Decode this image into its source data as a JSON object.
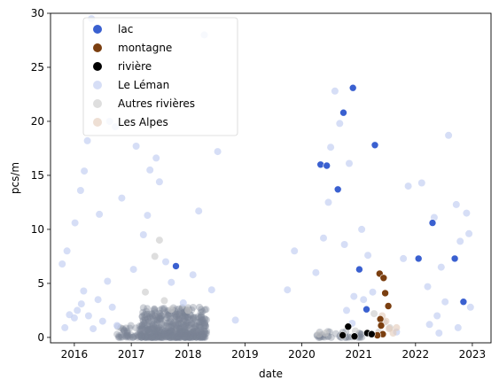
{
  "chart_data": {
    "type": "scatter",
    "xlabel": "date",
    "ylabel": "pcs/m",
    "xlim": [
      "2015-08-01",
      "2023-05-01"
    ],
    "ylim": [
      -0.5,
      30
    ],
    "x_ticks": [
      "2016",
      "2017",
      "2018",
      "2019",
      "2020",
      "2021",
      "2022",
      "2023"
    ],
    "y_ticks": [
      0,
      5,
      10,
      15,
      20,
      25,
      30
    ],
    "grid": false,
    "legend_position": "top-left",
    "series": [
      {
        "name": "lac",
        "color": "#3a60d0",
        "alpha": 1,
        "points": [
          [
            "2017-10-15",
            6.6
          ],
          [
            "2020-05-01",
            16.0
          ],
          [
            "2020-06-10",
            15.9
          ],
          [
            "2020-08-20",
            13.7
          ],
          [
            "2020-09-25",
            20.8
          ],
          [
            "2020-11-25",
            23.1
          ],
          [
            "2021-01-05",
            6.3
          ],
          [
            "2021-02-20",
            2.6
          ],
          [
            "2021-04-15",
            17.8
          ],
          [
            "2022-01-20",
            7.3
          ],
          [
            "2022-04-20",
            10.6
          ],
          [
            "2022-09-10",
            7.3
          ],
          [
            "2022-11-05",
            3.3
          ]
        ]
      },
      {
        "name": "montagne",
        "color": "#7b3f10",
        "alpha": 1,
        "points": [
          [
            "2021-05-15",
            5.9
          ],
          [
            "2021-06-10",
            5.5
          ],
          [
            "2021-06-20",
            4.1
          ],
          [
            "2021-07-10",
            2.9
          ],
          [
            "2021-05-20",
            1.7
          ],
          [
            "2021-05-25",
            1.1
          ],
          [
            "2021-06-05",
            0.3
          ],
          [
            "2021-05-01",
            0.2
          ]
        ]
      },
      {
        "name": "rivière",
        "color": "#000000",
        "alpha": 1,
        "points": [
          [
            "2020-09-20",
            0.2
          ],
          [
            "2020-10-25",
            1.0
          ],
          [
            "2020-12-05",
            0.1
          ],
          [
            "2021-02-25",
            0.4
          ],
          [
            "2021-03-25",
            0.3
          ]
        ]
      },
      {
        "name": "Le Léman",
        "color": "#c5d0f2",
        "alpha": 0.7,
        "points": [
          [
            "2015-11-01",
            0.9
          ],
          [
            "2015-12-01",
            2.1
          ],
          [
            "2016-01-01",
            1.8
          ],
          [
            "2016-01-20",
            2.5
          ],
          [
            "2016-02-15",
            3.1
          ],
          [
            "2016-03-01",
            4.3
          ],
          [
            "2016-04-01",
            2.0
          ],
          [
            "2016-05-01",
            0.8
          ],
          [
            "2016-06-01",
            3.5
          ],
          [
            "2016-07-01",
            1.5
          ],
          [
            "2016-08-01",
            5.2
          ],
          [
            "2016-09-01",
            2.8
          ],
          [
            "2016-10-01",
            1.1
          ],
          [
            "2015-10-15",
            6.8
          ],
          [
            "2015-11-15",
            8.0
          ],
          [
            "2016-01-05",
            10.6
          ],
          [
            "2016-02-10",
            13.6
          ],
          [
            "2016-03-05",
            15.4
          ],
          [
            "2016-03-25",
            18.2
          ],
          [
            "2016-04-20",
            29.5
          ],
          [
            "2016-06-10",
            11.4
          ],
          [
            "2016-08-15",
            20.0
          ],
          [
            "2016-09-20",
            19.5
          ],
          [
            "2016-11-01",
            12.9
          ],
          [
            "2017-02-01",
            17.7
          ],
          [
            "2017-01-15",
            6.3
          ],
          [
            "2017-03-20",
            9.5
          ],
          [
            "2017-05-01",
            15.5
          ],
          [
            "2017-06-10",
            16.6
          ],
          [
            "2017-07-01",
            14.4
          ],
          [
            "2017-04-15",
            11.3
          ],
          [
            "2017-08-10",
            7.0
          ],
          [
            "2017-09-15",
            5.1
          ],
          [
            "2017-12-01",
            3.2
          ],
          [
            "2018-02-01",
            5.8
          ],
          [
            "2018-03-10",
            11.7
          ],
          [
            "2018-04-15",
            28.0
          ],
          [
            "2018-06-01",
            4.4
          ],
          [
            "2018-07-10",
            17.2
          ],
          [
            "2018-11-01",
            1.6
          ],
          [
            "2019-10-01",
            4.4
          ],
          [
            "2019-11-15",
            8.0
          ],
          [
            "2020-04-01",
            6.0
          ],
          [
            "2020-05-20",
            9.2
          ],
          [
            "2020-06-20",
            12.5
          ],
          [
            "2020-07-05",
            17.6
          ],
          [
            "2020-08-01",
            22.8
          ],
          [
            "2020-09-01",
            19.8
          ],
          [
            "2020-10-01",
            8.6
          ],
          [
            "2020-11-01",
            16.1
          ],
          [
            "2020-12-01",
            3.8
          ],
          [
            "2021-01-20",
            10.0
          ],
          [
            "2021-03-01",
            7.6
          ],
          [
            "2021-04-01",
            4.2
          ],
          [
            "2021-09-01",
            0.5
          ],
          [
            "2021-10-15",
            7.3
          ],
          [
            "2021-11-15",
            14.0
          ],
          [
            "2022-02-10",
            14.3
          ],
          [
            "2022-03-20",
            4.7
          ],
          [
            "2022-05-01",
            11.1
          ],
          [
            "2022-06-15",
            6.5
          ],
          [
            "2022-08-01",
            18.7
          ],
          [
            "2022-09-20",
            12.3
          ],
          [
            "2022-10-15",
            8.9
          ],
          [
            "2022-11-25",
            11.5
          ],
          [
            "2022-12-10",
            9.6
          ],
          [
            "2022-12-20",
            2.8
          ],
          [
            "2022-07-10",
            3.3
          ],
          [
            "2022-05-20",
            2.0
          ],
          [
            "2022-04-01",
            1.2
          ],
          [
            "2022-06-01",
            0.4
          ],
          [
            "2022-10-01",
            0.9
          ],
          [
            "2020-10-15",
            2.5
          ],
          [
            "2020-11-20",
            1.3
          ],
          [
            "2021-02-01",
            3.5
          ]
        ]
      },
      {
        "name": "Autres rivières",
        "color": "#c8c8c8",
        "alpha": 0.6,
        "points": [
          [
            "2017-04-01",
            4.2
          ],
          [
            "2017-06-01",
            7.5
          ],
          [
            "2017-07-01",
            9.0
          ],
          [
            "2017-08-01",
            3.4
          ],
          [
            "2017-09-15",
            2.6
          ],
          [
            "2018-01-01",
            2.5
          ],
          [
            "2020-04-20",
            0.3
          ],
          [
            "2020-06-01",
            0.4
          ],
          [
            "2020-12-10",
            0.6
          ],
          [
            "2021-04-10",
            2.2
          ],
          [
            "2021-05-10",
            0.5
          ],
          [
            "2021-06-15",
            1.4
          ],
          [
            "2021-07-20",
            0.9
          ]
        ]
      },
      {
        "name": "Les Alpes",
        "color": "#e3c9b8",
        "alpha": 0.6,
        "points": [
          [
            "2021-06-25",
            1.5
          ],
          [
            "2021-07-15",
            0.8
          ],
          [
            "2021-08-10",
            0.4
          ],
          [
            "2021-09-01",
            0.9
          ],
          [
            "2021-05-05",
            0.3
          ],
          [
            "2021-06-01",
            2.0
          ]
        ]
      }
    ]
  }
}
